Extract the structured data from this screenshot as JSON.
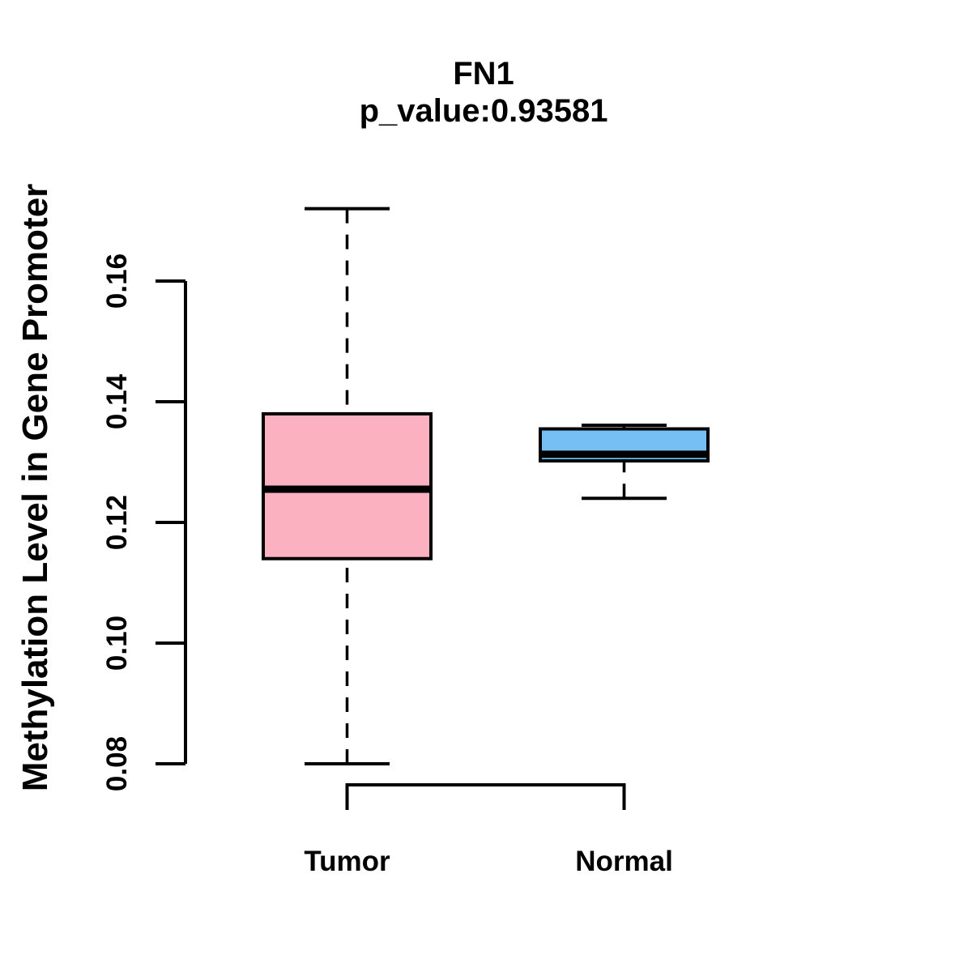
{
  "chart_data": {
    "type": "boxplot",
    "title": "FN1",
    "subtitle": "p_value:0.93581",
    "gene": "FN1",
    "p_value": 0.93581,
    "ylabel": "Methylation Level in Gene Promoter",
    "xlabel": "",
    "categories": [
      "Tumor",
      "Normal"
    ],
    "yticks": [
      "0.08",
      "0.10",
      "0.12",
      "0.14",
      "0.16"
    ],
    "ylim": [
      0.076,
      0.176
    ],
    "grid": false,
    "legend": "none",
    "stroke": "#000000",
    "background": "#FFFFFF",
    "series": [
      {
        "name": "Tumor",
        "fill": "#FCB1C1",
        "whisker_low": 0.08,
        "q1": 0.114,
        "median": 0.1255,
        "q3": 0.138,
        "whisker_high": 0.172
      },
      {
        "name": "Normal",
        "fill": "#76BFF5",
        "whisker_low": 0.124,
        "q1": 0.1302,
        "median": 0.1313,
        "q3": 0.1355,
        "whisker_high": 0.1361
      }
    ]
  }
}
